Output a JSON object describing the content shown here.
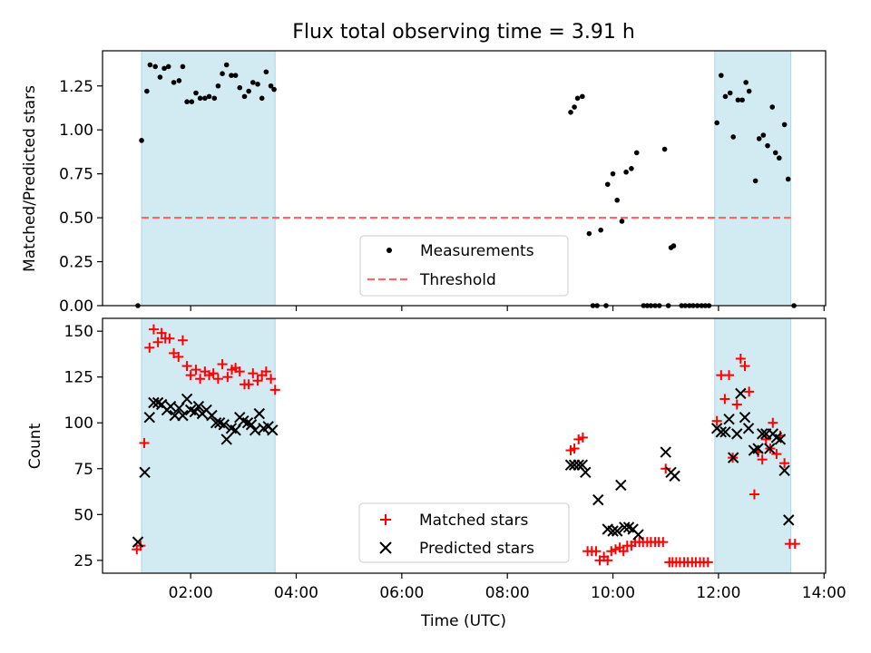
{
  "figure": {
    "title": "Flux total observing time = 3.91 h",
    "xlabel": "Time (UTC)"
  },
  "chart_data": [
    {
      "type": "scatter",
      "panel": "top",
      "ylabel": "Matched/Predicted stars",
      "xlim": [
        0.33,
        14.03
      ],
      "ylim": [
        0,
        1.45
      ],
      "yticks": [
        0.0,
        0.25,
        0.5,
        0.75,
        1.0,
        1.25
      ],
      "ytick_labels": [
        "0.00",
        "0.25",
        "0.50",
        "0.75",
        "1.00",
        "1.25"
      ],
      "shaded_intervals": [
        [
          1.07,
          3.6
        ],
        [
          11.93,
          13.37
        ]
      ],
      "shade_color": "#add8e6",
      "threshold": {
        "name": "Threshold",
        "y": 0.5,
        "x_range": [
          1.07,
          13.37
        ],
        "color": "#ff6666"
      },
      "measurements": {
        "name": "Measurements",
        "color": "#000000",
        "points": [
          [
            1.0,
            0.0
          ],
          [
            1.07,
            0.94
          ],
          [
            1.17,
            1.22
          ],
          [
            1.23,
            1.37
          ],
          [
            1.33,
            1.36
          ],
          [
            1.42,
            1.3
          ],
          [
            1.5,
            1.35
          ],
          [
            1.58,
            1.36
          ],
          [
            1.68,
            1.27
          ],
          [
            1.78,
            1.28
          ],
          [
            1.85,
            1.36
          ],
          [
            1.93,
            1.16
          ],
          [
            2.02,
            1.16
          ],
          [
            2.1,
            1.21
          ],
          [
            2.18,
            1.18
          ],
          [
            2.27,
            1.18
          ],
          [
            2.35,
            1.19
          ],
          [
            2.45,
            1.18
          ],
          [
            2.52,
            1.25
          ],
          [
            2.6,
            1.32
          ],
          [
            2.68,
            1.37
          ],
          [
            2.77,
            1.31
          ],
          [
            2.85,
            1.31
          ],
          [
            2.93,
            1.24
          ],
          [
            3.02,
            1.19
          ],
          [
            3.1,
            1.22
          ],
          [
            3.18,
            1.27
          ],
          [
            3.27,
            1.26
          ],
          [
            3.35,
            1.18
          ],
          [
            3.43,
            1.33
          ],
          [
            3.52,
            1.25
          ],
          [
            3.58,
            1.23
          ],
          [
            9.2,
            1.1
          ],
          [
            9.27,
            1.13
          ],
          [
            9.33,
            1.18
          ],
          [
            9.42,
            1.19
          ],
          [
            9.55,
            0.41
          ],
          [
            9.62,
            0.0
          ],
          [
            9.7,
            0.0
          ],
          [
            9.77,
            0.43
          ],
          [
            9.87,
            0.0
          ],
          [
            9.9,
            0.69
          ],
          [
            10.0,
            0.75
          ],
          [
            10.08,
            0.6
          ],
          [
            10.17,
            0.48
          ],
          [
            10.25,
            0.76
          ],
          [
            10.35,
            0.78
          ],
          [
            10.45,
            0.87
          ],
          [
            10.58,
            0.0
          ],
          [
            10.65,
            0.0
          ],
          [
            10.72,
            0.0
          ],
          [
            10.8,
            0.0
          ],
          [
            10.88,
            0.0
          ],
          [
            10.98,
            0.89
          ],
          [
            11.05,
            0.0
          ],
          [
            11.1,
            0.33
          ],
          [
            11.15,
            0.34
          ],
          [
            11.3,
            0.0
          ],
          [
            11.37,
            0.0
          ],
          [
            11.45,
            0.0
          ],
          [
            11.52,
            0.0
          ],
          [
            11.6,
            0.0
          ],
          [
            11.68,
            0.0
          ],
          [
            11.75,
            0.0
          ],
          [
            11.82,
            0.0
          ],
          [
            11.97,
            1.04
          ],
          [
            12.05,
            1.31
          ],
          [
            12.13,
            1.19
          ],
          [
            12.22,
            1.21
          ],
          [
            12.28,
            0.96
          ],
          [
            12.37,
            1.17
          ],
          [
            12.45,
            1.17
          ],
          [
            12.52,
            1.27
          ],
          [
            12.58,
            1.22
          ],
          [
            12.7,
            0.71
          ],
          [
            12.77,
            0.95
          ],
          [
            12.85,
            0.97
          ],
          [
            12.93,
            0.91
          ],
          [
            13.02,
            1.13
          ],
          [
            13.08,
            0.87
          ],
          [
            13.15,
            0.84
          ],
          [
            13.25,
            1.03
          ],
          [
            13.32,
            0.72
          ],
          [
            13.43,
            0.0
          ]
        ]
      },
      "legend": {
        "location": "lower center",
        "entries": [
          "Measurements",
          "Threshold"
        ]
      }
    },
    {
      "type": "scatter",
      "panel": "bottom",
      "ylabel": "Count",
      "xlabel": "Time (UTC)",
      "xlim": [
        0.33,
        14.03
      ],
      "ylim": [
        18,
        157
      ],
      "xticks": [
        2,
        4,
        6,
        8,
        10,
        12,
        14
      ],
      "xtick_labels": [
        "02:00",
        "04:00",
        "06:00",
        "08:00",
        "10:00",
        "12:00",
        "14:00"
      ],
      "yticks": [
        25,
        50,
        75,
        100,
        125,
        150
      ],
      "ytick_labels": [
        "25",
        "50",
        "75",
        "100",
        "125",
        "150"
      ],
      "shaded_intervals": [
        [
          1.07,
          3.6
        ],
        [
          11.93,
          13.37
        ]
      ],
      "shade_color": "#add8e6",
      "series": [
        {
          "name": "Matched stars",
          "marker": "plus",
          "color": "#ff0000",
          "points": [
            [
              0.98,
              31
            ],
            [
              1.05,
              33
            ],
            [
              1.12,
              89
            ],
            [
              1.22,
              141
            ],
            [
              1.3,
              151
            ],
            [
              1.38,
              144
            ],
            [
              1.45,
              149
            ],
            [
              1.52,
              146
            ],
            [
              1.6,
              146
            ],
            [
              1.68,
              138
            ],
            [
              1.77,
              136
            ],
            [
              1.85,
              145
            ],
            [
              1.93,
              131
            ],
            [
              2.0,
              126
            ],
            [
              2.1,
              129
            ],
            [
              2.18,
              124
            ],
            [
              2.27,
              128
            ],
            [
              2.35,
              126
            ],
            [
              2.43,
              127
            ],
            [
              2.52,
              124
            ],
            [
              2.6,
              132
            ],
            [
              2.7,
              125
            ],
            [
              2.78,
              129
            ],
            [
              2.85,
              130
            ],
            [
              2.93,
              128
            ],
            [
              3.02,
              121
            ],
            [
              3.1,
              121
            ],
            [
              3.18,
              127
            ],
            [
              3.27,
              123
            ],
            [
              3.35,
              126
            ],
            [
              3.43,
              128
            ],
            [
              3.52,
              124
            ],
            [
              3.6,
              118
            ],
            [
              9.2,
              85
            ],
            [
              9.27,
              86
            ],
            [
              9.35,
              91
            ],
            [
              9.43,
              92
            ],
            [
              9.52,
              30
            ],
            [
              9.6,
              30
            ],
            [
              9.68,
              30
            ],
            [
              9.75,
              25
            ],
            [
              9.83,
              27
            ],
            [
              9.9,
              25
            ],
            [
              9.97,
              30
            ],
            [
              10.05,
              31
            ],
            [
              10.13,
              32
            ],
            [
              10.2,
              30
            ],
            [
              10.27,
              33
            ],
            [
              10.35,
              33
            ],
            [
              10.42,
              35
            ],
            [
              10.5,
              35
            ],
            [
              10.57,
              35
            ],
            [
              10.65,
              35
            ],
            [
              10.72,
              35
            ],
            [
              10.8,
              35
            ],
            [
              10.87,
              35
            ],
            [
              10.95,
              35
            ],
            [
              11.0,
              75
            ],
            [
              11.07,
              24
            ],
            [
              11.13,
              24
            ],
            [
              11.2,
              24
            ],
            [
              11.27,
              24
            ],
            [
              11.35,
              24
            ],
            [
              11.42,
              24
            ],
            [
              11.5,
              24
            ],
            [
              11.57,
              24
            ],
            [
              11.65,
              24
            ],
            [
              11.72,
              24
            ],
            [
              11.8,
              24
            ],
            [
              11.97,
              101
            ],
            [
              12.05,
              126
            ],
            [
              12.12,
              113
            ],
            [
              12.2,
              126
            ],
            [
              12.27,
              81
            ],
            [
              12.35,
              110
            ],
            [
              12.42,
              135
            ],
            [
              12.5,
              131
            ],
            [
              12.58,
              117
            ],
            [
              12.68,
              61
            ],
            [
              12.75,
              84
            ],
            [
              12.83,
              80
            ],
            [
              12.9,
              91
            ],
            [
              12.98,
              86
            ],
            [
              13.03,
              100
            ],
            [
              13.1,
              83
            ],
            [
              13.17,
              93
            ],
            [
              13.25,
              78
            ],
            [
              13.35,
              34
            ],
            [
              13.45,
              34
            ]
          ]
        },
        {
          "name": "Predicted stars",
          "marker": "x",
          "color": "#000000",
          "points": [
            [
              1.0,
              35
            ],
            [
              1.13,
              73
            ],
            [
              1.22,
              103
            ],
            [
              1.3,
              111
            ],
            [
              1.38,
              111
            ],
            [
              1.45,
              110
            ],
            [
              1.55,
              107
            ],
            [
              1.62,
              109
            ],
            [
              1.7,
              104
            ],
            [
              1.78,
              108
            ],
            [
              1.85,
              104
            ],
            [
              1.93,
              113
            ],
            [
              2.0,
              107
            ],
            [
              2.08,
              106
            ],
            [
              2.15,
              109
            ],
            [
              2.22,
              105
            ],
            [
              2.3,
              107
            ],
            [
              2.4,
              104
            ],
            [
              2.48,
              100
            ],
            [
              2.55,
              100
            ],
            [
              2.63,
              99
            ],
            [
              2.68,
              91
            ],
            [
              2.77,
              97
            ],
            [
              2.85,
              96
            ],
            [
              2.93,
              103
            ],
            [
              3.0,
              101
            ],
            [
              3.08,
              100
            ],
            [
              3.15,
              99
            ],
            [
              3.22,
              96
            ],
            [
              3.3,
              105
            ],
            [
              3.38,
              97
            ],
            [
              3.47,
              98
            ],
            [
              3.55,
              96
            ],
            [
              9.2,
              77
            ],
            [
              9.27,
              77
            ],
            [
              9.35,
              77
            ],
            [
              9.42,
              77
            ],
            [
              9.48,
              73
            ],
            [
              9.72,
              58
            ],
            [
              9.9,
              42
            ],
            [
              10.0,
              41
            ],
            [
              10.08,
              41
            ],
            [
              10.15,
              66
            ],
            [
              10.22,
              43
            ],
            [
              10.3,
              43
            ],
            [
              10.38,
              42
            ],
            [
              10.48,
              39
            ],
            [
              11.0,
              84
            ],
            [
              11.1,
              73
            ],
            [
              11.17,
              71
            ],
            [
              11.97,
              97
            ],
            [
              12.05,
              95
            ],
            [
              12.13,
              95
            ],
            [
              12.2,
              102
            ],
            [
              12.28,
              81
            ],
            [
              12.35,
              94
            ],
            [
              12.42,
              116
            ],
            [
              12.5,
              103
            ],
            [
              12.57,
              97
            ],
            [
              12.67,
              85
            ],
            [
              12.75,
              86
            ],
            [
              12.83,
              94
            ],
            [
              12.9,
              94
            ],
            [
              12.97,
              86
            ],
            [
              13.03,
              94
            ],
            [
              13.1,
              92
            ],
            [
              13.17,
              91
            ],
            [
              13.25,
              74
            ],
            [
              13.33,
              47
            ]
          ]
        }
      ],
      "legend": {
        "location": "lower center",
        "entries": [
          "Matched stars",
          "Predicted stars"
        ]
      }
    }
  ]
}
